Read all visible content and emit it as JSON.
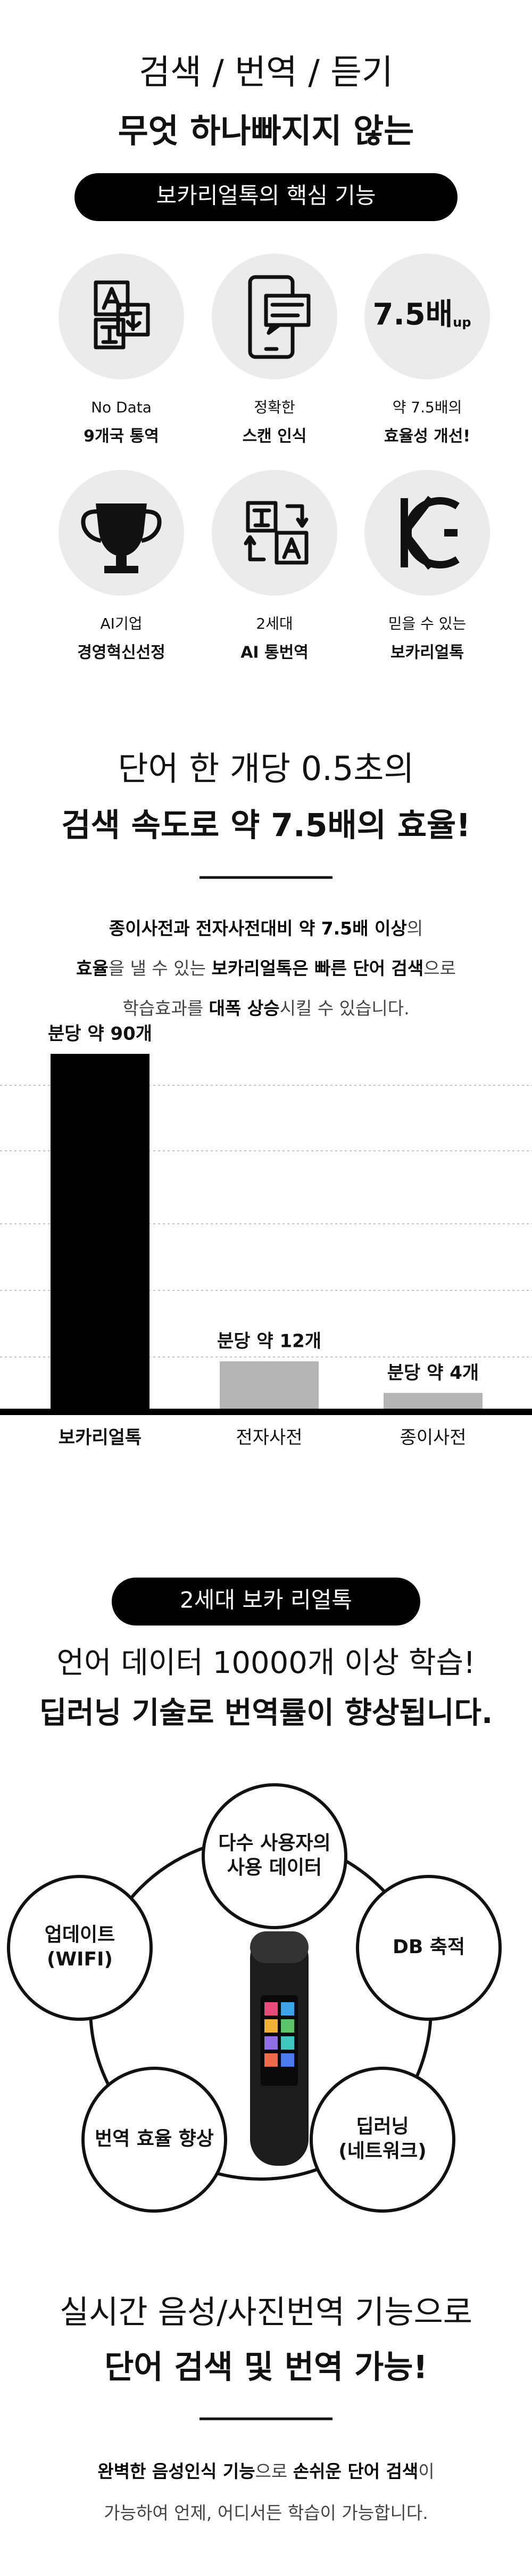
{
  "header": {
    "line1": "검색 / 번역 / 듣기",
    "line2": "무엇 하나빠지지 않는",
    "badge": "보카리얼톡의 핵심 기능"
  },
  "features": [
    {
      "caption": "No Data",
      "label": "9개국 통역"
    },
    {
      "caption": "정확한",
      "label": "스캔 인식"
    },
    {
      "caption": "약 7.5배의",
      "label": "효율성 개선!",
      "icon_text": "7.5배",
      "icon_sup": "up"
    },
    {
      "caption": "AI기업",
      "label": "경영혁신선정"
    },
    {
      "caption": "2세대",
      "label": "AI 통번역"
    },
    {
      "caption": "믿을 수 있는",
      "label": "보카리얼톡"
    }
  ],
  "speed": {
    "title1": "단어 한 개당 0.5초의",
    "title2": "검색 속도로 약 7.5배의 효율!",
    "paragraph": [
      [
        {
          "text": "종이사전과 전자사전대비 약 7.5배 이상",
          "bold": true
        },
        {
          "text": "의",
          "bold": false
        }
      ],
      [
        {
          "text": "효율",
          "bold": true
        },
        {
          "text": "을 낼 수 있는 ",
          "bold": false
        },
        {
          "text": "보카리얼톡은 빠른 단어 검색",
          "bold": true
        },
        {
          "text": "으로",
          "bold": false
        }
      ],
      [
        {
          "text": "학습효과를 ",
          "bold": false
        },
        {
          "text": "대폭 상승",
          "bold": true
        },
        {
          "text": "시킬 수 있습니다.",
          "bold": false
        }
      ]
    ]
  },
  "chart_data": {
    "type": "bar",
    "categories": [
      "보카리얼톡",
      "전자사전",
      "종이사전"
    ],
    "values": [
      90,
      12,
      4
    ],
    "value_labels": [
      "분당 약 90개",
      "분당 약 12개",
      "분당 약 4개"
    ],
    "colors": [
      "#000000",
      "#b5b5b5",
      "#b5b5b5"
    ]
  },
  "gen2": {
    "badge": "2세대 보카 리얼톡",
    "title1": "언어 데이터 10000개 이상 학습!",
    "title2": "딥러닝 기술로 번역률이 향상됩니다.",
    "nodes": [
      {
        "lines": [
          "다수 사용자의",
          "사용 데이터"
        ]
      },
      {
        "lines": [
          "DB 축적"
        ]
      },
      {
        "lines": [
          "딥러닝",
          "(네트워크)"
        ]
      },
      {
        "lines": [
          "번역 효율 향상"
        ]
      },
      {
        "lines": [
          "업데이트",
          "(WIFI)"
        ]
      }
    ]
  },
  "realtime": {
    "title1": "실시간 음성/사진번역 기능으로",
    "title2": "단어 검색 및 번역 가능!",
    "paragraph": [
      [
        {
          "text": "완벽한 음성인식 기능",
          "bold": true
        },
        {
          "text": "으로 ",
          "bold": false
        },
        {
          "text": "손쉬운 단어 검색",
          "bold": true
        },
        {
          "text": "이",
          "bold": false
        }
      ],
      [
        {
          "text": "가능하여 언제, 어디서든 학습이 가능합니다.",
          "bold": false
        }
      ]
    ]
  }
}
